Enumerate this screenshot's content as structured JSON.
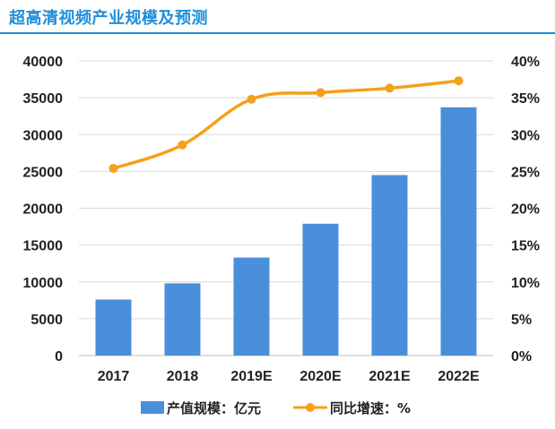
{
  "title": "超高清视频产业规模及预测",
  "chart_data": {
    "type": "bar",
    "categories": [
      "2017",
      "2018",
      "2019E",
      "2020E",
      "2021E",
      "2022E"
    ],
    "series": [
      {
        "name": "产值规模：亿元",
        "type": "bar",
        "axis": "left",
        "color": "#4a8fdb",
        "values": [
          7600,
          9800,
          13300,
          17900,
          24500,
          33700
        ]
      },
      {
        "name": "同比增速：%",
        "type": "line",
        "axis": "right",
        "color": "#f5a01a",
        "values": [
          25.4,
          28.6,
          34.8,
          35.7,
          36.3,
          37.3
        ]
      }
    ],
    "ylim": [
      0,
      40000
    ],
    "yticks": [
      "0",
      "5000",
      "10000",
      "15000",
      "20000",
      "25000",
      "30000",
      "35000",
      "40000"
    ],
    "y2lim": [
      0,
      40
    ],
    "y2ticks": [
      "0%",
      "5%",
      "10%",
      "15%",
      "20%",
      "25%",
      "30%",
      "35%",
      "40%"
    ],
    "grid": true,
    "legend_position": "bottom"
  }
}
